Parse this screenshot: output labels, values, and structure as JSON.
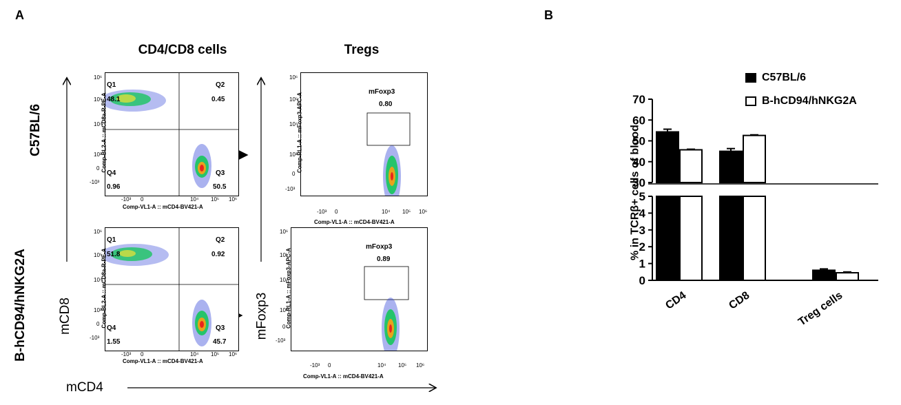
{
  "panel_a": {
    "letter": "A",
    "col_headers": [
      "CD4/CD8 cells",
      "Tregs"
    ],
    "row_labels": [
      "C57BL/6",
      "B-hCD94/hNKG2A"
    ],
    "big_axis_y_cd": "mCD8",
    "big_axis_y_treg": "mFoxp3",
    "big_axis_x": "mCD4",
    "cd_y_axis_title": "Comp-BL2-A :: mCD8a-R-PE-A",
    "cd_x_axis_title": "Comp-VL1-A :: mCD4-BV421-A",
    "treg_y_axis_title": "Comp-RL1-A :: mFoxp3-APC-A",
    "treg_x_axis_title": "Comp-VL1-A :: mCD4-BV421-A",
    "y_ticks": [
      "10⁶",
      "10⁵",
      "10⁴",
      "10³",
      "0",
      "-10³"
    ],
    "x_ticks": [
      "-10³",
      "0",
      "10⁴",
      "10⁵",
      "10⁶"
    ],
    "gate_name": "mFoxp3",
    "rows": [
      {
        "quadrants": {
          "Q1": {
            "name": "Q1",
            "value": "48.1"
          },
          "Q2": {
            "name": "Q2",
            "value": "0.45"
          },
          "Q3": {
            "name": "Q3",
            "value": "50.5"
          },
          "Q4": {
            "name": "Q4",
            "value": "0.96"
          }
        },
        "foxp3": "0.80"
      },
      {
        "quadrants": {
          "Q1": {
            "name": "Q1",
            "value": "51.8"
          },
          "Q2": {
            "name": "Q2",
            "value": "0.92"
          },
          "Q3": {
            "name": "Q3",
            "value": "45.7"
          },
          "Q4": {
            "name": "Q4",
            "value": "1.55"
          }
        },
        "foxp3": "0.89"
      }
    ]
  },
  "panel_b": {
    "letter": "B"
  },
  "chart_data": {
    "type": "bar",
    "categories": [
      "CD4",
      "CD8",
      "Treg cells"
    ],
    "series": [
      {
        "name": "C57BL/6",
        "values": [
          54.3,
          45.0,
          0.6
        ],
        "errors": [
          1.3,
          1.3,
          0.08
        ],
        "fill": "#000000"
      },
      {
        "name": "B-hCD94/hNKG2A",
        "values": [
          45.7,
          52.6,
          0.45
        ],
        "errors": [
          0.3,
          0.3,
          0.05
        ],
        "fill": "#ffffff"
      }
    ],
    "ylabel": "% in TCRβ+ cells of blood",
    "y_axis_break": {
      "lower": [
        0,
        5
      ],
      "upper": [
        30,
        70
      ]
    },
    "yticks_upper": [
      "70",
      "60",
      "50",
      "40",
      "30"
    ],
    "yticks_lower": [
      "5",
      "4",
      "3",
      "2",
      "1",
      "0"
    ],
    "legend_position": "top-right"
  },
  "colors": {
    "density_high": "#e8241c",
    "density_mid": "#25c46a",
    "density_low": "#2b3fd6"
  }
}
